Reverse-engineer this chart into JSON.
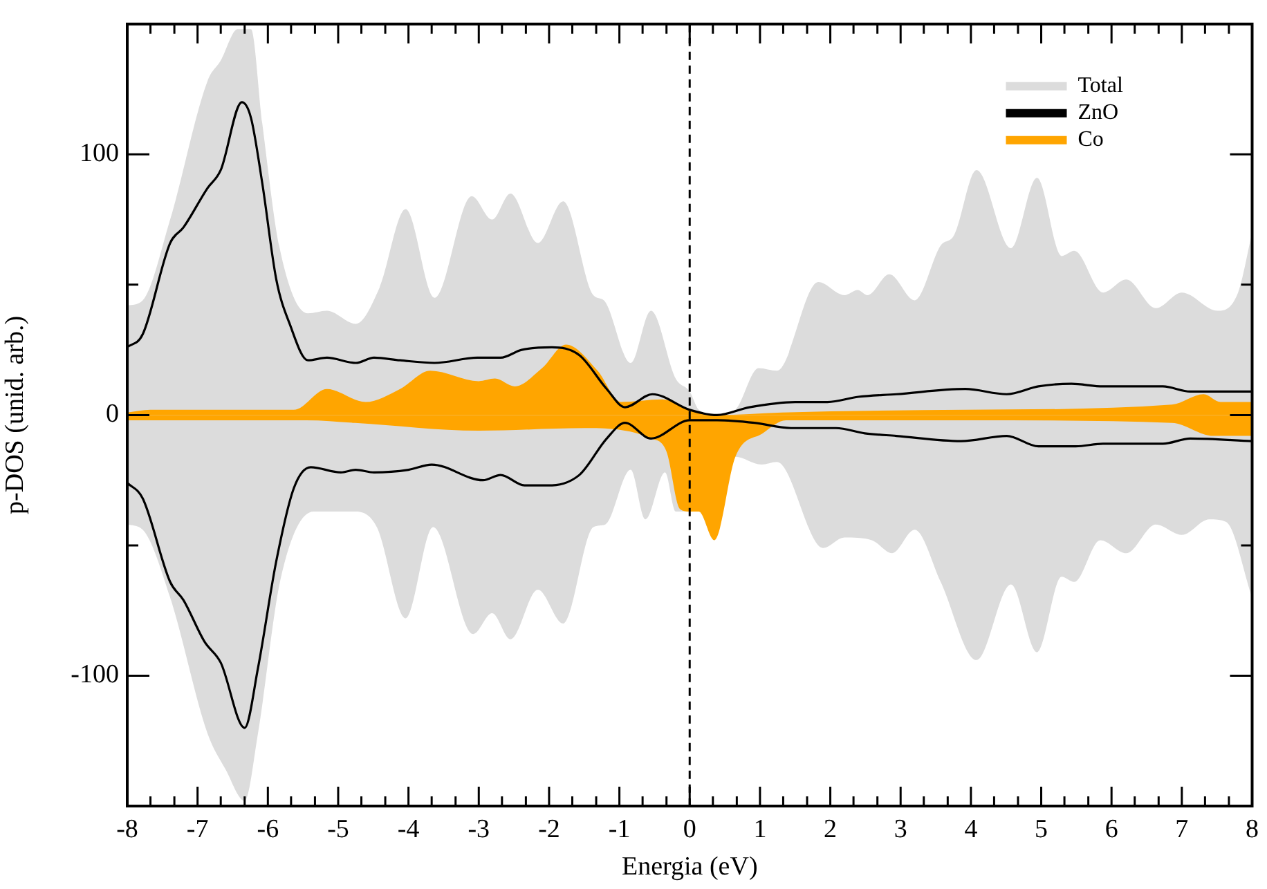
{
  "chart_data": {
    "type": "area",
    "xlabel": "Energia (eV)",
    "ylabel": "p-DOS (unid. arb.)",
    "xlim": [
      -8,
      8
    ],
    "ylim": [
      -150,
      150
    ],
    "xticks": [
      -8,
      {
        "value": -7.67,
        "label": null
      },
      {
        "value": -7.33,
        "label": null
      },
      -7,
      {
        "value": -6.67,
        "label": null
      },
      {
        "value": -6.33,
        "label": null
      },
      -6,
      {
        "value": -5.67,
        "label": null
      },
      {
        "value": -5.33,
        "label": null
      },
      -5,
      {
        "value": -4.67,
        "label": null
      },
      {
        "value": -4.33,
        "label": null
      },
      -4,
      {
        "value": -3.67,
        "label": null
      },
      {
        "value": -3.33,
        "label": null
      },
      -3,
      {
        "value": -2.67,
        "label": null
      },
      {
        "value": -2.33,
        "label": null
      },
      -2,
      {
        "value": -1.67,
        "label": null
      },
      {
        "value": -1.33,
        "label": null
      },
      -1,
      {
        "value": -0.67,
        "label": null
      },
      {
        "value": -0.33,
        "label": null
      },
      0,
      {
        "value": 0.33,
        "label": null
      },
      {
        "value": 0.67,
        "label": null
      },
      1,
      {
        "value": 1.33,
        "label": null
      },
      {
        "value": 1.67,
        "label": null
      },
      2,
      {
        "value": 2.33,
        "label": null
      },
      {
        "value": 2.67,
        "label": null
      },
      3,
      {
        "value": 3.33,
        "label": null
      },
      {
        "value": 3.67,
        "label": null
      },
      4,
      {
        "value": 4.33,
        "label": null
      },
      {
        "value": 4.67,
        "label": null
      },
      5,
      {
        "value": 5.33,
        "label": null
      },
      {
        "value": 5.67,
        "label": null
      },
      6,
      {
        "value": 6.33,
        "label": null
      },
      {
        "value": 6.67,
        "label": null
      },
      7,
      {
        "value": 7.33,
        "label": null
      },
      {
        "value": 7.67,
        "label": null
      },
      8
    ],
    "yticks": [
      {
        "value": -100,
        "label": "-100"
      },
      {
        "value": -50,
        "label": null
      },
      0,
      {
        "value": 50,
        "label": null
      },
      100
    ],
    "legend": "top right",
    "ref_lines": [
      {
        "axis": "x",
        "value": 0,
        "color": "#000000",
        "line_style": "dashed"
      }
    ],
    "series": [
      {
        "name": "Total",
        "color": "#dcdcdc",
        "x": [
          -8,
          -7.78,
          -7.39,
          -6.86,
          -6.67,
          -6.43,
          -6.24,
          -6.08,
          -5.84,
          -5.43,
          -5.16,
          -4.75,
          -4.41,
          -4.04,
          -3.63,
          -3.1,
          -2.81,
          -2.55,
          -2.16,
          -1.8,
          -1.37,
          -1.22,
          -0.84,
          -0.55,
          -0.2,
          0,
          0.13,
          0.39,
          0.65,
          0.98,
          1.24,
          1.83,
          2.2,
          2.39,
          2.53,
          2.84,
          3.2,
          3.57,
          3.76,
          4.08,
          4.57,
          4.94,
          5.29,
          5.47,
          5.88,
          6.21,
          6.63,
          7,
          7.51,
          7.8,
          8
        ],
        "values": [
          42,
          44,
          75,
          128,
          136,
          148,
          148,
          112,
          65,
          39,
          40,
          35,
          49,
          79,
          45,
          84,
          75,
          85,
          66,
          82,
          46,
          44,
          20,
          40,
          14,
          9,
          2,
          0,
          2,
          18,
          17,
          51,
          46,
          48,
          46,
          54,
          44,
          65,
          69,
          94,
          64,
          91,
          61,
          63,
          47,
          52,
          41,
          47,
          40,
          47,
          70
        ]
      },
      {
        "color": "#dcdcdc",
        "x": [
          -8,
          -7.78,
          -7.39,
          -6.86,
          -6.6,
          -6.33,
          -6.14,
          -5.82,
          -5.35,
          -4.76,
          -4.45,
          -4.04,
          -3.65,
          -3.08,
          -2.81,
          -2.55,
          -2.16,
          -1.8,
          -1.37,
          -1.2,
          -0.84,
          -0.63,
          -0.35,
          -0.2,
          0,
          0.13,
          0.35,
          0.65,
          1.02,
          1.24,
          1.9,
          2.2,
          2.59,
          2.88,
          3.2,
          3.57,
          4.08,
          4.57,
          4.94,
          5.29,
          5.47,
          5.84,
          6.21,
          6.63,
          7,
          7.39,
          7.63,
          8
        ],
        "values": [
          -42,
          -44,
          -70,
          -122,
          -136,
          -148,
          -122,
          -63,
          -37,
          -37,
          -43,
          -78,
          -43,
          -84,
          -76,
          -86,
          -67,
          -80,
          -43,
          -42,
          -21,
          -40,
          -22,
          -37,
          -37,
          -37,
          -48,
          -16,
          -19,
          -18,
          -51,
          -47,
          -48,
          -53,
          -44,
          -64,
          -94,
          -65,
          -91,
          -62,
          -64,
          -48,
          -53,
          -42,
          -46,
          -40,
          -41,
          -70
        ]
      },
      {
        "name": "ZnO",
        "type": "line",
        "color": "#000000",
        "x": [
          -8,
          -7.78,
          -7.39,
          -7.2,
          -6.86,
          -6.67,
          -6.37,
          -6.24,
          -6.08,
          -5.88,
          -5.69,
          -5.43,
          -5.16,
          -4.75,
          -4.49,
          -4.12,
          -3.63,
          -3.02,
          -2.69,
          -2.39,
          -1.96,
          -1.57,
          -1.18,
          -0.92,
          -0.53,
          0,
          0.39,
          0.85,
          1.5,
          1.96,
          2.4,
          2.94,
          3.92,
          4.51,
          4.96,
          5.43,
          5.88,
          6.73,
          7.12,
          8
        ],
        "values": [
          26,
          31,
          66,
          72,
          87,
          94,
          120,
          114,
          89,
          52,
          35,
          21,
          22,
          20,
          22,
          21,
          20,
          22,
          22,
          25,
          26,
          23,
          10,
          3,
          8,
          2,
          0,
          3,
          5,
          5,
          7,
          8,
          10,
          8,
          11,
          12,
          11,
          11,
          9,
          9
        ]
      },
      {
        "type": "line",
        "color": "#000000",
        "x": [
          -8,
          -7.78,
          -7.39,
          -7.2,
          -6.9,
          -6.67,
          -6.33,
          -6.14,
          -5.88,
          -5.63,
          -5.39,
          -4.96,
          -4.75,
          -4.49,
          -4,
          -3.67,
          -2.94,
          -2.69,
          -2.35,
          -2.02,
          -1.57,
          -1.18,
          -0.92,
          -0.55,
          0,
          0.39,
          0.92,
          1.44,
          2.08,
          2.49,
          2.94,
          3.86,
          4.51,
          4.96,
          5.49,
          5.88,
          6.73,
          7.12,
          8
        ],
        "values": [
          -26,
          -32,
          -64,
          -71,
          -87,
          -95,
          -120,
          -97,
          -56,
          -28,
          -20,
          -22,
          -21,
          -22,
          -21,
          -19,
          -25,
          -23,
          -27,
          -27,
          -23,
          -9,
          -3,
          -9,
          -2,
          -2,
          -3,
          -5,
          -5,
          -7,
          -8,
          -10,
          -8,
          -12,
          -12,
          -11,
          -11,
          -9,
          -10
        ]
      },
      {
        "name": "Co",
        "color": "#ffa500",
        "x": [
          -8,
          -7.67,
          -6.37,
          -5.63,
          -5.16,
          -4.61,
          -4.12,
          -3.69,
          -3,
          -2.77,
          -2.49,
          -2.1,
          -1.76,
          -1.31,
          -0.98,
          -0.39,
          0,
          0.39,
          1.31,
          3.92,
          6.86,
          7.31,
          7.55,
          8
        ],
        "values": [
          1,
          2,
          2,
          2,
          10,
          5,
          10,
          17,
          13,
          14,
          11,
          18,
          27,
          17,
          5,
          6,
          2,
          0,
          1,
          2,
          4,
          8,
          5,
          5
        ]
      },
      {
        "color": "#ffa500",
        "x": [
          -8,
          -6.1,
          -5.45,
          -4.76,
          -3,
          -1.5,
          -0.55,
          -0.33,
          -0.14,
          0,
          0.13,
          0.35,
          0.65,
          1.04,
          1.37,
          3.92,
          6.86,
          7.45,
          8
        ],
        "values": [
          -2,
          -2,
          -2,
          -3,
          -6,
          -5,
          -9,
          -14,
          -36,
          -37,
          -37,
          -48,
          -16,
          -7,
          -2,
          -2,
          -3,
          -8,
          -8
        ]
      }
    ]
  }
}
